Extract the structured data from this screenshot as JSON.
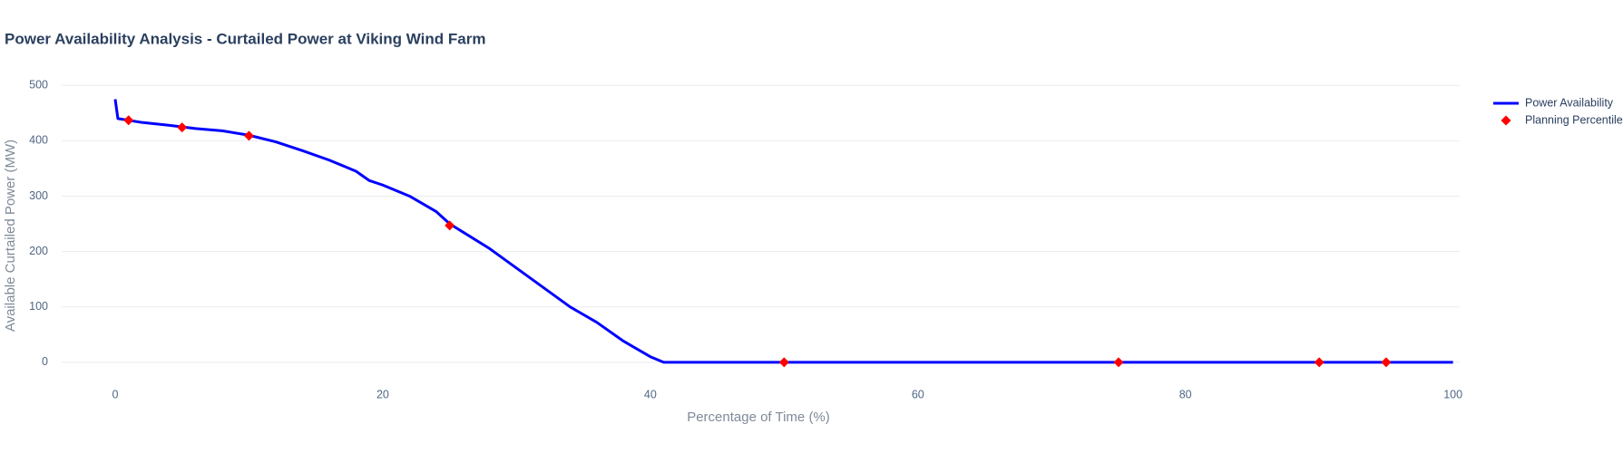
{
  "chart_data": {
    "type": "line",
    "title": "Power Availability Analysis - Curtailed Power at Viking Wind Farm",
    "x_label": "Percentage of Time (%)",
    "y_label": "Available Curtailed Power (MW)",
    "xlim": [
      -4,
      100.5
    ],
    "ylim": [
      -15,
      520
    ],
    "xticks": [
      0,
      20,
      40,
      60,
      80,
      100
    ],
    "yticks": [
      0,
      100,
      200,
      300,
      400,
      500
    ],
    "grid": true,
    "legend": "right",
    "series": [
      {
        "name": "Power Availability",
        "color": "#0000ff",
        "mode": "line",
        "x": [
          0,
          0.2,
          1,
          2,
          4,
          6,
          8,
          10,
          12,
          14,
          16,
          18,
          19,
          20,
          22,
          24,
          25,
          26,
          28,
          30,
          32,
          34,
          36,
          38,
          40,
          41,
          100
        ],
        "values": [
          475,
          440,
          437,
          433,
          428,
          422,
          418,
          410,
          398,
          382,
          365,
          345,
          328,
          320,
          300,
          272,
          250,
          235,
          205,
          170,
          135,
          100,
          72,
          38,
          10,
          0,
          0
        ]
      },
      {
        "name": "Planning Percentiles",
        "color": "#ff0000",
        "mode": "markers",
        "x": [
          1,
          5,
          10,
          25,
          50,
          75,
          90,
          95
        ],
        "values": [
          437,
          424,
          409,
          247,
          0,
          0,
          0,
          0
        ]
      }
    ]
  }
}
